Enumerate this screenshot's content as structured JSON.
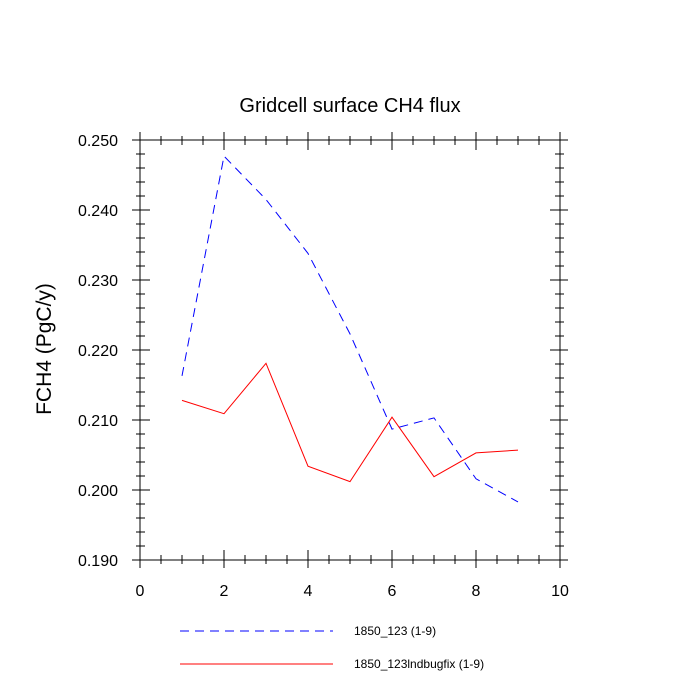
{
  "chart_data": {
    "type": "line",
    "title": "Gridcell surface CH4 flux",
    "xlabel": "",
    "ylabel": "FCH4  (PgC/y)",
    "xlim": [
      0,
      10
    ],
    "ylim": [
      0.19,
      0.25
    ],
    "x_ticks": [
      0,
      2,
      4,
      6,
      8,
      10
    ],
    "x_tick_labels": [
      "0",
      "2",
      "4",
      "6",
      "8",
      "10"
    ],
    "y_ticks": [
      0.19,
      0.2,
      0.21,
      0.22,
      0.23,
      0.24,
      0.25
    ],
    "y_tick_labels": [
      "0.190",
      "0.200",
      "0.210",
      "0.220",
      "0.230",
      "0.240",
      "0.250"
    ],
    "grid": false,
    "legend_position": "bottom",
    "x": [
      1,
      2,
      3,
      4,
      5,
      6,
      7,
      8,
      9
    ],
    "series": [
      {
        "name": "1850_123 (1-9)",
        "color": "#0000ff",
        "style": "dashed",
        "values": [
          0.2163,
          0.2477,
          0.2415,
          0.2338,
          0.2223,
          0.2087,
          0.2103,
          0.2016,
          0.1983
        ]
      },
      {
        "name": "1850_123lndbugfix (1-9)",
        "color": "#ff0000",
        "style": "solid",
        "values": [
          0.2128,
          0.2109,
          0.2181,
          0.2034,
          0.2012,
          0.2104,
          0.2019,
          0.2053,
          0.2057
        ]
      }
    ]
  }
}
